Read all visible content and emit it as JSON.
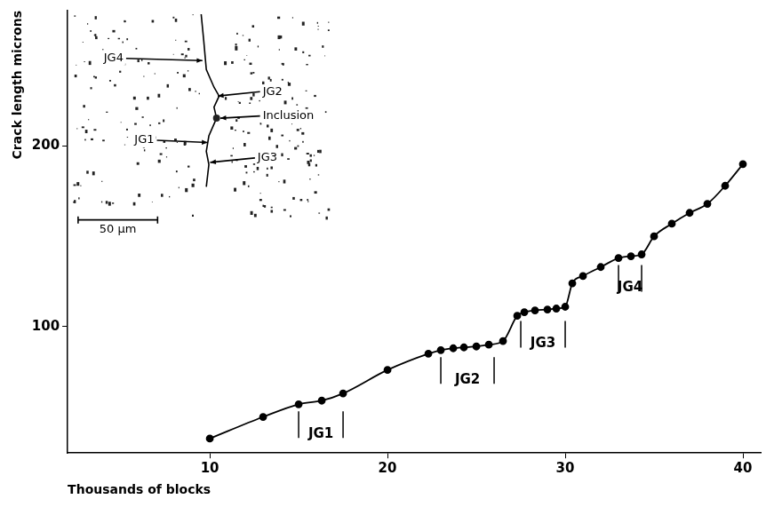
{
  "chart_data": {
    "type": "line",
    "x_label": "Thousands of blocks",
    "y_label": "Crack length microns",
    "x": [
      10,
      13,
      15,
      16.3,
      17.5,
      20,
      22.3,
      23,
      23.7,
      24.3,
      25,
      25.7,
      26.5,
      27.3,
      27.7,
      28.3,
      29,
      29.5,
      30,
      30.4,
      31,
      32,
      33,
      33.7,
      34.3,
      35,
      36,
      37,
      38,
      39,
      40
    ],
    "values": [
      38,
      50,
      57,
      59,
      63,
      76,
      85,
      87,
      88,
      88.5,
      89,
      90,
      92,
      106,
      108,
      109,
      109.5,
      110,
      111,
      124,
      128,
      133,
      138,
      139,
      140,
      150,
      157,
      163,
      168,
      178,
      190
    ],
    "color": "#000000",
    "marker": "circle",
    "xlim": [
      2,
      41
    ],
    "xticks": [
      10,
      20,
      30,
      40
    ],
    "ylim": [
      30,
      275
    ],
    "yticks": [
      100,
      200
    ],
    "grid": false,
    "intervals": [
      {
        "label": "JG1",
        "start": 15,
        "end": 17.5
      },
      {
        "label": "JG2",
        "start": 23,
        "end": 26
      },
      {
        "label": "JG3",
        "start": 27.5,
        "end": 30
      },
      {
        "label": "JG4",
        "start": 33,
        "end": 34.3
      }
    ],
    "inset": {
      "labels": [
        "JG4",
        "JG2",
        "Inclusion",
        "JG1",
        "JG3"
      ],
      "scale_bar": "50 µm"
    }
  }
}
